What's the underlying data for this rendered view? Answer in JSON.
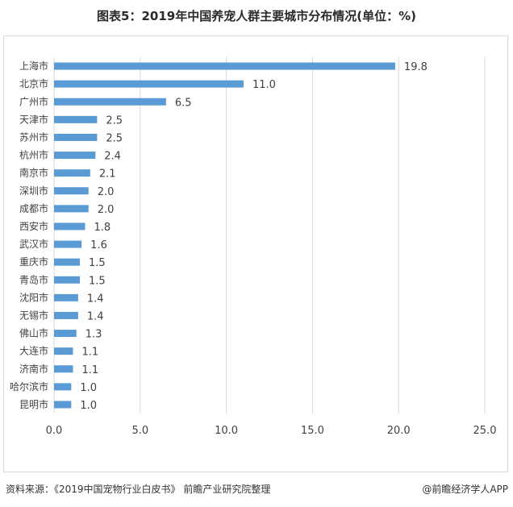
{
  "title": "图表5：2019年中国养宠人群主要城市分布情况(单位：%)",
  "source": "资料来源：《2019中国宠物行业白皮书》 前瞻产业研究院整理",
  "brand": "@前瞻经济学人APP",
  "colors": {
    "bar": "#5b9bd5",
    "grid": "#d9d9d9"
  },
  "chart_data": {
    "type": "bar",
    "orientation": "horizontal",
    "title": "图表5：2019年中国养宠人群主要城市分布情况(单位：%)",
    "categories": [
      "上海市",
      "北京市",
      "广州市",
      "天津市",
      "苏州市",
      "杭州市",
      "南京市",
      "深圳市",
      "成都市",
      "西安市",
      "武汉市",
      "重庆市",
      "青岛市",
      "沈阳市",
      "无锡市",
      "佛山市",
      "大连市",
      "济南市",
      "哈尔滨市",
      "昆明市"
    ],
    "values": [
      19.8,
      11.0,
      6.5,
      2.5,
      2.5,
      2.4,
      2.1,
      2.0,
      2.0,
      1.8,
      1.6,
      1.5,
      1.5,
      1.4,
      1.4,
      1.3,
      1.1,
      1.1,
      1.0,
      1.0
    ],
    "value_labels": [
      "19.8",
      "11.0",
      "6.5",
      "2.5",
      "2.5",
      "2.4",
      "2.1",
      "2.0",
      "2.0",
      "1.8",
      "1.6",
      "1.5",
      "1.5",
      "1.4",
      "1.4",
      "1.3",
      "1.1",
      "1.1",
      "1.0",
      "1.0"
    ],
    "xlim": [
      0,
      25
    ],
    "xticks": [
      0,
      5,
      10,
      15,
      20,
      25
    ],
    "xtick_labels": [
      "0.0",
      "5.0",
      "10.0",
      "15.0",
      "20.0",
      "25.0"
    ],
    "grid": "vertical",
    "legend": "none"
  }
}
